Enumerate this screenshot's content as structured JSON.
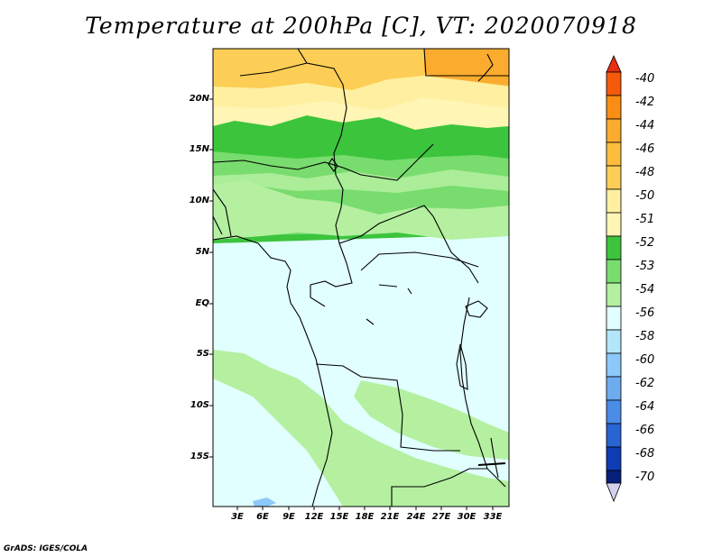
{
  "title": "Temperature at 200hPa [C], VT: 2020070918",
  "footer": "GrADS: IGES/COLA",
  "map": {
    "variable": "Temperature at 200hPa",
    "units": "C",
    "valid_time": "2020070918",
    "lat_labels": [
      "20N",
      "15N",
      "10N",
      "5N",
      "EQ",
      "5S",
      "10S",
      "15S"
    ],
    "lon_labels": [
      "3E",
      "6E",
      "9E",
      "12E",
      "15E",
      "18E",
      "21E",
      "24E",
      "27E",
      "30E",
      "33E"
    ]
  },
  "colorbar": {
    "labels": [
      "-40",
      "-42",
      "-44",
      "-46",
      "-48",
      "-50",
      "-51",
      "-52",
      "-53",
      "-54",
      "-56",
      "-58",
      "-60",
      "-62",
      "-64",
      "-66",
      "-68",
      "-70"
    ],
    "colors": [
      "#e82e13",
      "#f45a0a",
      "#fa8d14",
      "#fbac2e",
      "#fdce55",
      "#fef0a0",
      "#fff5b4",
      "#3cc43c",
      "#78dc6e",
      "#b4f0a0",
      "#e1ffff",
      "#b4e6fa",
      "#8cc8fa",
      "#6eacf0",
      "#4a8ce6",
      "#2864d2",
      "#0e3cb4",
      "#06207a",
      "#d2d2f0"
    ]
  }
}
